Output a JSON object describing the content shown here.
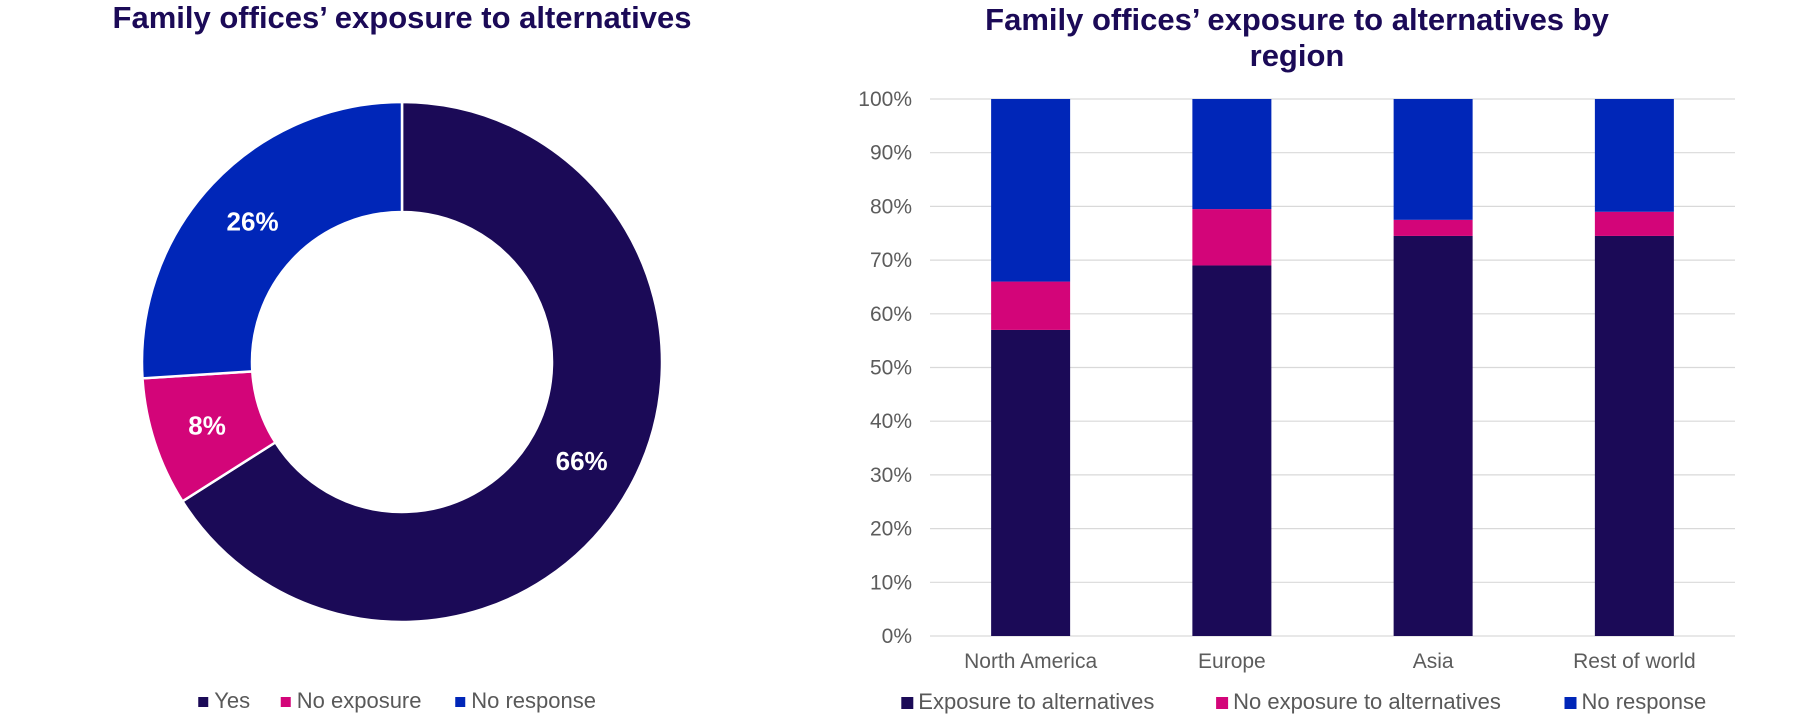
{
  "colors": {
    "dark": "#1b0a57",
    "pink": "#d30579",
    "blue": "#0026b8",
    "grid": "#d9d9d9",
    "title": "#1b0a57"
  },
  "chart_data": [
    {
      "type": "pie",
      "title": "Family offices’ exposure to alternatives",
      "categories": [
        "Yes",
        "No exposure",
        "No response"
      ],
      "values": [
        66,
        8,
        26
      ],
      "value_labels": [
        "66%",
        "8%",
        "26%"
      ],
      "colors": [
        "#1b0a57",
        "#d30579",
        "#0026b8"
      ],
      "donut": true,
      "legend": {
        "position": "bottom",
        "entries": [
          "Yes",
          "No exposure",
          "No response"
        ]
      }
    },
    {
      "type": "bar",
      "stacked": true,
      "title_lines": [
        "Family offices’ exposure to alternatives by",
        "region"
      ],
      "categories": [
        "North America",
        "Europe",
        "Asia",
        "Rest of world"
      ],
      "series": [
        {
          "name": "Exposure to alternatives",
          "color": "#1b0a57",
          "values": [
            57,
            69,
            74.5,
            74.5
          ]
        },
        {
          "name": "No exposure to alternatives",
          "color": "#d30579",
          "values": [
            9,
            10.5,
            3,
            4.5
          ]
        },
        {
          "name": "No response",
          "color": "#0026b8",
          "values": [
            34,
            20.5,
            22.5,
            21
          ]
        }
      ],
      "ylim": [
        0,
        100
      ],
      "yticks": [
        "0%",
        "10%",
        "20%",
        "30%",
        "40%",
        "50%",
        "60%",
        "70%",
        "80%",
        "90%",
        "100%"
      ],
      "grid": true,
      "legend": {
        "position": "bottom",
        "entries": [
          "Exposure to alternatives",
          "No exposure to alternatives",
          "No response"
        ]
      }
    }
  ]
}
